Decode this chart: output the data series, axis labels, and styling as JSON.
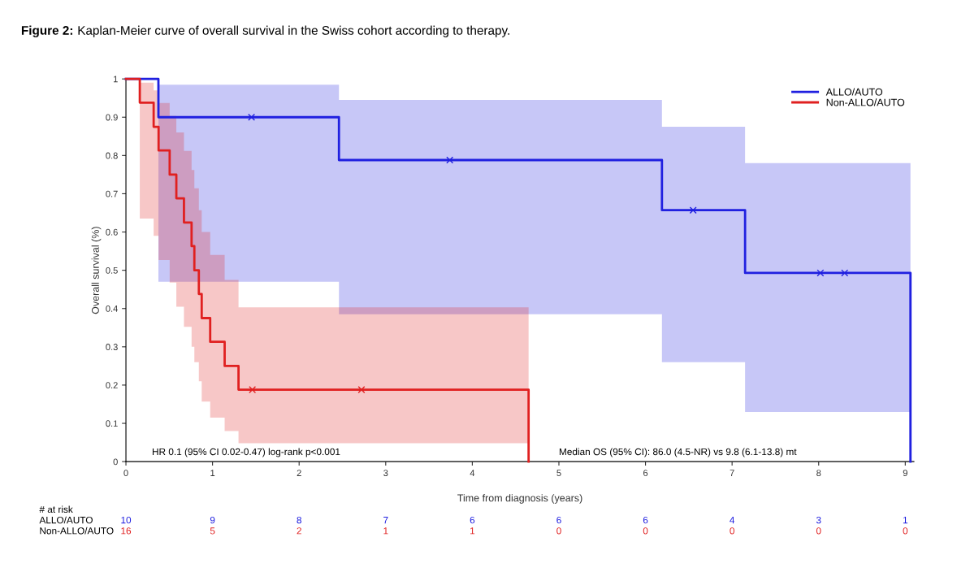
{
  "chart_data": {
    "type": "step",
    "title": "Figure 2: Kaplan-Meier curve of overall survival in the Swiss cohort according to therapy.",
    "xlabel": "Time from diagnosis (years)",
    "ylabel": "Overall survival (%)",
    "series": [
      {
        "name": "ALLO/AUTO",
        "color": "#2020e0",
        "x": [
          0,
          0.375,
          2.46,
          6.19,
          7.15,
          9.06
        ],
        "values": [
          1,
          0.9,
          0.788,
          0.657,
          0.493,
          0
        ],
        "lower": [
          null,
          0.47,
          0.385,
          0.26,
          0.13,
          0.13
        ],
        "upper": [
          null,
          0.985,
          0.945,
          0.875,
          0.78,
          0.78
        ]
      },
      {
        "name": "Non-ALLO/AUTO",
        "color": "#e02020",
        "x": [
          0,
          0.16,
          0.32,
          0.377,
          0.505,
          0.582,
          0.67,
          0.758,
          0.79,
          0.842,
          0.875,
          0.973,
          1.14,
          1.3,
          4.65
        ],
        "values": [
          1,
          0.938,
          0.875,
          0.813,
          0.75,
          0.688,
          0.625,
          0.563,
          0.5,
          0.438,
          0.375,
          0.313,
          0.25,
          0.188,
          0
        ],
        "lower": [
          null,
          0.635,
          0.59,
          0.527,
          0.468,
          0.405,
          0.352,
          0.3,
          0.26,
          0.21,
          0.157,
          0.115,
          0.08,
          0.048,
          0.048
        ],
        "upper": [
          null,
          0.99,
          0.97,
          0.937,
          0.903,
          0.86,
          0.812,
          0.762,
          0.714,
          0.657,
          0.6,
          0.54,
          0.475,
          0.403,
          0.403
        ]
      },
      {
        "type": "scatter",
        "color": "#2020e0",
        "marker": "cross",
        "x": [
          1.45,
          3.74,
          6.55,
          8.02,
          8.3
        ],
        "values": [
          0.9,
          0.788,
          0.657,
          0.493,
          0.493
        ]
      },
      {
        "type": "scatter",
        "color": "#e02020",
        "marker": "cross",
        "x": [
          1.46,
          2.72
        ],
        "values": [
          0.188,
          0.188
        ]
      }
    ],
    "xlim": [
      0,
      9.1
    ],
    "xticks": [
      0,
      1,
      2,
      3,
      4,
      5,
      6,
      7,
      8,
      9
    ],
    "ylim": [
      0,
      1
    ],
    "yticks": [
      0,
      0.1,
      0.2,
      0.3,
      0.4,
      0.5,
      0.6,
      0.7,
      0.8,
      0.9,
      1
    ],
    "grid": false,
    "legend": "top right",
    "annotations": [
      "HR 0.1 (95% CI 0.02-0.47) log-rank p<0.001",
      "Median OS (95% CI): 86.0 (4.5-NR) vs 9.8 (6.1-13.8) mt",
      "# at risk",
      "ALLO/AUTO",
      "10",
      "9",
      "8",
      "7",
      "6",
      "6",
      "6",
      "4",
      "3",
      "1",
      "Non-ALLO/AUTO",
      "16",
      "5",
      "2",
      "1",
      "1",
      "0",
      "0",
      "0",
      "0",
      "0"
    ]
  }
}
